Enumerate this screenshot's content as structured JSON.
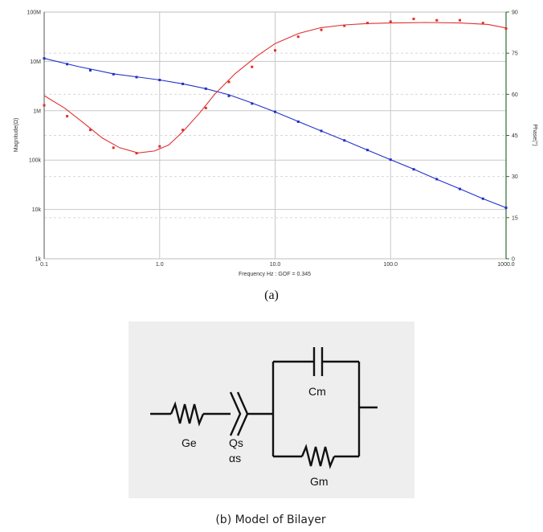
{
  "chart_data": {
    "type": "line",
    "x_scale": "log",
    "xlim": [
      0.1,
      1000
    ],
    "x_ticks": [
      "0.1",
      "1.0",
      "10.0",
      "100.0",
      "1000.0"
    ],
    "xlabel": "Frequency Hz : GOF = 0.345",
    "y_left": {
      "label": "Magnitude(Ω)",
      "scale": "log",
      "ylim": [
        1000,
        100000000
      ],
      "ticks": [
        "1k",
        "10k",
        "100k",
        "1M",
        "10M",
        "100M"
      ]
    },
    "y_right": {
      "label": "Phase(°)",
      "ylim": [
        0,
        90
      ],
      "ticks": [
        "0",
        "15",
        "30",
        "45",
        "60",
        "75",
        "90"
      ]
    },
    "grid": true,
    "series": [
      {
        "axis": "left",
        "color": "#2030c8",
        "points": [
          [
            0.1,
            11500000
          ],
          [
            0.158,
            8800000
          ],
          [
            0.251,
            6600000
          ],
          [
            0.398,
            5500000
          ],
          [
            0.631,
            4800000
          ],
          [
            1.0,
            4200000
          ],
          [
            1.585,
            3500000
          ],
          [
            2.512,
            2800000
          ],
          [
            3.981,
            2000000
          ],
          [
            6.31,
            1400000
          ],
          [
            10.0,
            950000
          ],
          [
            15.85,
            600000
          ],
          [
            25.12,
            390000
          ],
          [
            39.81,
            250000
          ],
          [
            63.1,
            160000
          ],
          [
            100.0,
            102000
          ],
          [
            158.5,
            65000
          ],
          [
            251.2,
            41000
          ],
          [
            398.1,
            26000
          ],
          [
            631.0,
            16500
          ],
          [
            1000.0,
            10800
          ]
        ],
        "fit": [
          [
            0.1,
            11500000
          ],
          [
            0.2,
            7800000
          ],
          [
            0.4,
            5600000
          ],
          [
            0.7,
            4700000
          ],
          [
            1.0,
            4200000
          ],
          [
            1.6,
            3500000
          ],
          [
            2.5,
            2800000
          ],
          [
            4.0,
            2100000
          ],
          [
            6.0,
            1500000
          ],
          [
            10.0,
            950000
          ],
          [
            16.0,
            600000
          ],
          [
            25.0,
            390000
          ],
          [
            40.0,
            250000
          ],
          [
            63.0,
            160000
          ],
          [
            100.0,
            102000
          ],
          [
            160.0,
            65000
          ],
          [
            250.0,
            41000
          ],
          [
            400.0,
            26000
          ],
          [
            630.0,
            16500
          ],
          [
            1000.0,
            10800
          ]
        ]
      },
      {
        "axis": "right",
        "color": "#e03030",
        "points": [
          [
            0.1,
            56
          ],
          [
            0.158,
            52
          ],
          [
            0.251,
            47
          ],
          [
            0.398,
            40.5
          ],
          [
            0.631,
            38.5
          ],
          [
            1.0,
            41
          ],
          [
            1.585,
            47
          ],
          [
            2.512,
            55
          ],
          [
            3.981,
            64.5
          ],
          [
            6.31,
            70
          ],
          [
            10.0,
            76
          ],
          [
            15.85,
            81
          ],
          [
            25.12,
            83.5
          ],
          [
            39.81,
            85
          ],
          [
            63.1,
            86
          ],
          [
            100.0,
            86.5
          ],
          [
            158.5,
            87.5
          ],
          [
            251.2,
            87
          ],
          [
            398.1,
            87
          ],
          [
            631.0,
            86
          ],
          [
            1000.0,
            84
          ]
        ],
        "fit": [
          [
            0.1,
            59.5
          ],
          [
            0.15,
            55
          ],
          [
            0.22,
            49.5
          ],
          [
            0.32,
            44
          ],
          [
            0.45,
            40.5
          ],
          [
            0.65,
            38.6
          ],
          [
            0.9,
            39.3
          ],
          [
            1.2,
            41.5
          ],
          [
            1.6,
            46.5
          ],
          [
            2.2,
            53
          ],
          [
            3.0,
            60
          ],
          [
            4.5,
            67.5
          ],
          [
            7.0,
            74
          ],
          [
            10.0,
            78.5
          ],
          [
            16.0,
            82.2
          ],
          [
            25.0,
            84.3
          ],
          [
            40.0,
            85.3
          ],
          [
            63.0,
            85.8
          ],
          [
            100.0,
            86
          ],
          [
            200.0,
            86.2
          ],
          [
            400.0,
            86
          ],
          [
            700.0,
            85.5
          ],
          [
            1000.0,
            84.2
          ]
        ]
      }
    ]
  },
  "captions": {
    "a": "(a)",
    "b": "(b) Model of Bilayer"
  },
  "circuit": {
    "labels": {
      "ge": "Ge",
      "qs": "Qs",
      "alpha": "αs",
      "cm": "Cm",
      "gm": "Gm"
    },
    "background": "#eeeeee"
  }
}
